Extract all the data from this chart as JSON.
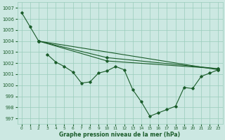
{
  "title": "Graphe pression niveau de la mer (hPa)",
  "bg_color": "#cce8e2",
  "grid_color": "#99ccbb",
  "line_color": "#1a5c2a",
  "ylim": [
    996.5,
    1007.5
  ],
  "yticks": [
    997,
    998,
    999,
    1000,
    1001,
    1002,
    1003,
    1004,
    1005,
    1006,
    1007
  ],
  "xlim": [
    -0.5,
    23.5
  ],
  "xticks": [
    0,
    1,
    2,
    3,
    4,
    5,
    6,
    7,
    8,
    9,
    10,
    11,
    12,
    13,
    14,
    15,
    16,
    17,
    18,
    19,
    20,
    21,
    22,
    23
  ],
  "series": [
    {
      "x": [
        0,
        1,
        2,
        23
      ],
      "y": [
        1006.6,
        1005.3,
        1004.0,
        1001.4
      ]
    },
    {
      "x": [
        2,
        10,
        23
      ],
      "y": [
        1004.0,
        1002.5,
        1001.5
      ]
    },
    {
      "x": [
        2,
        10,
        23
      ],
      "y": [
        1004.0,
        1002.2,
        1001.5
      ]
    },
    {
      "x": [
        3,
        4,
        5,
        6,
        7,
        8,
        9,
        10,
        11,
        12,
        13,
        14,
        15,
        16,
        17,
        18,
        19,
        20,
        21,
        22,
        23
      ],
      "y": [
        1002.8,
        1002.1,
        1001.7,
        1001.2,
        1000.2,
        1000.3,
        1001.1,
        1001.3,
        1001.7,
        1001.4,
        999.6,
        998.5,
        997.2,
        997.5,
        997.8,
        998.1,
        999.8,
        999.7,
        1000.8,
        1001.1,
        1001.4
      ]
    }
  ]
}
